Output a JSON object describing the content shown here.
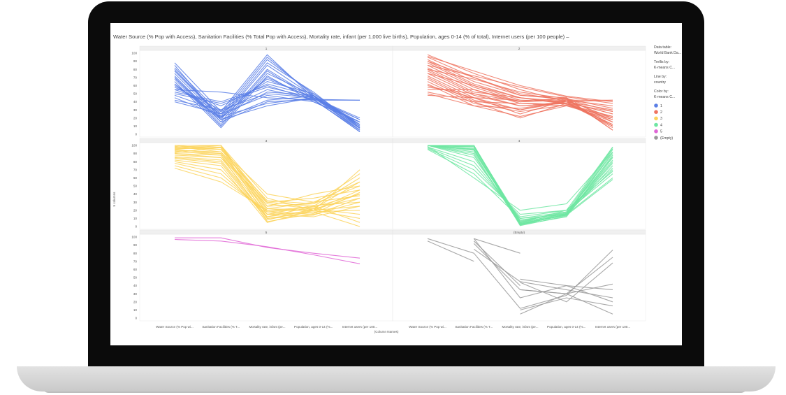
{
  "device": "laptop",
  "title": "Water Source (% Pop with Access), Sanitation Facilities (% Total Pop with Access), Mortality rate, infant (per 1,000 live births), Population, ages 0-14 (% of total), Internet users (per 100 people) –",
  "legend": {
    "data_table_label": "Data table:",
    "data_table_value": "World Bank Da...",
    "trellis_label": "Trellis by:",
    "trellis_value": "K-means C...",
    "line_label": "Line by:",
    "line_value": "country",
    "color_label": "Color by:",
    "color_value": "K-means C..."
  },
  "chart_data": {
    "type": "line",
    "subtype": "parallel-coordinates trellis",
    "ylabel": "5 columns",
    "xlabel": "(Column Names)",
    "categories": [
      "Water Source (% Pop wi...",
      "Sanitation Facilities (% T...",
      "Mortality rate, infant (pe...",
      "Population, ages 0-14 (%...",
      "Internet users (per 100..."
    ],
    "yticks": [
      0,
      10,
      20,
      30,
      40,
      50,
      60,
      70,
      80,
      90,
      100
    ],
    "ylim": [
      0,
      100
    ],
    "legend_placement": "right",
    "grid": false,
    "panels": [
      {
        "name": "1",
        "color": "#5b7fe6",
        "series": [
          [
            88,
            28,
            98,
            45,
            15
          ],
          [
            82,
            25,
            95,
            48,
            10
          ],
          [
            80,
            22,
            92,
            50,
            12
          ],
          [
            78,
            20,
            88,
            52,
            8
          ],
          [
            75,
            18,
            85,
            47,
            5
          ],
          [
            72,
            15,
            80,
            45,
            7
          ],
          [
            70,
            12,
            78,
            43,
            3
          ],
          [
            68,
            10,
            75,
            48,
            12
          ],
          [
            65,
            8,
            72,
            40,
            15
          ],
          [
            62,
            20,
            70,
            44,
            18
          ],
          [
            60,
            25,
            68,
            45,
            20
          ],
          [
            58,
            30,
            65,
            50,
            10
          ],
          [
            55,
            35,
            62,
            47,
            8
          ],
          [
            52,
            40,
            60,
            42,
            5
          ],
          [
            50,
            38,
            58,
            45,
            12
          ],
          [
            48,
            28,
            55,
            43,
            42
          ],
          [
            45,
            22,
            52,
            48,
            10
          ],
          [
            42,
            30,
            50,
            45,
            5
          ],
          [
            40,
            25,
            48,
            40,
            15
          ],
          [
            55,
            52,
            45,
            42,
            42
          ],
          [
            62,
            18,
            42,
            47,
            8
          ],
          [
            70,
            15,
            40,
            43,
            3
          ],
          [
            78,
            22,
            38,
            45,
            12
          ],
          [
            85,
            18,
            35,
            45,
            18
          ]
        ]
      },
      {
        "name": "2",
        "color": "#ef7460",
        "series": [
          [
            98,
            75,
            55,
            40,
            25
          ],
          [
            95,
            70,
            50,
            42,
            20
          ],
          [
            92,
            65,
            48,
            45,
            15
          ],
          [
            90,
            62,
            45,
            38,
            18
          ],
          [
            88,
            60,
            42,
            40,
            12
          ],
          [
            85,
            58,
            40,
            42,
            10
          ],
          [
            82,
            55,
            38,
            35,
            22
          ],
          [
            80,
            52,
            45,
            40,
            8
          ],
          [
            78,
            50,
            40,
            45,
            5
          ],
          [
            75,
            48,
            35,
            38,
            28
          ],
          [
            72,
            45,
            42,
            40,
            30
          ],
          [
            70,
            42,
            30,
            42,
            35
          ],
          [
            68,
            40,
            38,
            38,
            15
          ],
          [
            65,
            38,
            28,
            36,
            20
          ],
          [
            62,
            35,
            32,
            40,
            42
          ],
          [
            60,
            45,
            25,
            42,
            42
          ],
          [
            58,
            50,
            35,
            38,
            10
          ],
          [
            55,
            55,
            40,
            44,
            5
          ],
          [
            52,
            40,
            20,
            38,
            12
          ],
          [
            50,
            35,
            22,
            35,
            18
          ],
          [
            48,
            45,
            30,
            40,
            25
          ],
          [
            85,
            72,
            58,
            46,
            38
          ],
          [
            80,
            68,
            52,
            44,
            32
          ],
          [
            90,
            70,
            48,
            43,
            28
          ],
          [
            96,
            78,
            60,
            47,
            40
          ],
          [
            75,
            60,
            45,
            37,
            22
          ]
        ]
      },
      {
        "name": "3",
        "color": "#fcd45c",
        "series": [
          [
            100,
            100,
            35,
            20,
            70
          ],
          [
            98,
            98,
            30,
            25,
            60
          ],
          [
            97,
            95,
            28,
            22,
            55
          ],
          [
            95,
            100,
            25,
            28,
            50
          ],
          [
            94,
            92,
            22,
            20,
            45
          ],
          [
            92,
            90,
            20,
            24,
            40
          ],
          [
            90,
            88,
            18,
            22,
            35
          ],
          [
            88,
            85,
            15,
            26,
            30
          ],
          [
            86,
            82,
            12,
            20,
            25
          ],
          [
            85,
            80,
            10,
            18,
            20
          ],
          [
            84,
            78,
            8,
            22,
            15
          ],
          [
            82,
            75,
            5,
            20,
            10
          ],
          [
            80,
            70,
            12,
            25,
            5
          ],
          [
            78,
            65,
            15,
            18,
            0
          ],
          [
            75,
            60,
            18,
            15,
            30
          ],
          [
            72,
            55,
            20,
            20,
            40
          ],
          [
            95,
            90,
            25,
            40,
            50
          ],
          [
            90,
            85,
            30,
            35,
            45
          ],
          [
            100,
            95,
            40,
            30,
            55
          ],
          [
            98,
            100,
            15,
            12,
            25
          ],
          [
            96,
            97,
            10,
            14,
            35
          ],
          [
            99,
            92,
            32,
            28,
            65
          ],
          [
            93,
            88,
            6,
            16,
            42
          ],
          [
            91,
            98,
            22,
            30,
            38
          ]
        ]
      },
      {
        "name": "4",
        "color": "#6ee6a2",
        "series": [
          [
            100,
            100,
            2,
            15,
            98
          ],
          [
            100,
            100,
            3,
            14,
            95
          ],
          [
            100,
            100,
            4,
            15,
            92
          ],
          [
            100,
            98,
            5,
            16,
            90
          ],
          [
            100,
            98,
            2,
            12,
            88
          ],
          [
            100,
            96,
            1,
            13,
            85
          ],
          [
            100,
            95,
            3,
            15,
            80
          ],
          [
            100,
            95,
            4,
            14,
            75
          ],
          [
            100,
            94,
            5,
            16,
            70
          ],
          [
            100,
            92,
            6,
            18,
            65
          ],
          [
            100,
            90,
            2,
            15,
            60
          ],
          [
            100,
            88,
            3,
            14,
            58
          ],
          [
            100,
            85,
            8,
            16,
            82
          ],
          [
            98,
            80,
            10,
            15,
            78
          ],
          [
            97,
            75,
            12,
            20,
            72
          ],
          [
            96,
            70,
            15,
            20,
            68
          ],
          [
            95,
            65,
            10,
            18,
            96
          ],
          [
            99,
            60,
            20,
            28,
            92
          ],
          [
            100,
            100,
            5,
            20,
            98
          ],
          [
            100,
            99,
            7,
            17,
            86
          ]
        ]
      },
      {
        "name": "5",
        "color": "#e066d6",
        "series": [
          [
            99,
            99,
            87,
            80,
            74
          ],
          [
            97,
            95,
            88,
            78,
            67
          ]
        ]
      },
      {
        "name": "(Empty)",
        "color": "#999999",
        "series": [
          [
            98,
            80,
            null,
            null,
            null
          ],
          [
            95,
            70,
            null,
            null,
            null
          ],
          [
            null,
            98,
            80,
            null,
            null
          ],
          [
            null,
            95,
            40,
            null,
            null
          ],
          [
            null,
            98,
            25,
            40,
            20
          ],
          [
            null,
            92,
            35,
            30,
            42
          ],
          [
            null,
            85,
            45,
            35,
            25
          ],
          [
            null,
            80,
            12,
            28,
            84
          ],
          [
            null,
            null,
            5,
            30,
            75
          ],
          [
            null,
            null,
            48,
            40,
            35
          ],
          [
            null,
            null,
            44,
            20,
            68
          ],
          [
            null,
            null,
            10,
            25,
            15
          ],
          [
            null,
            null,
            35,
            30,
            5
          ]
        ]
      }
    ]
  }
}
